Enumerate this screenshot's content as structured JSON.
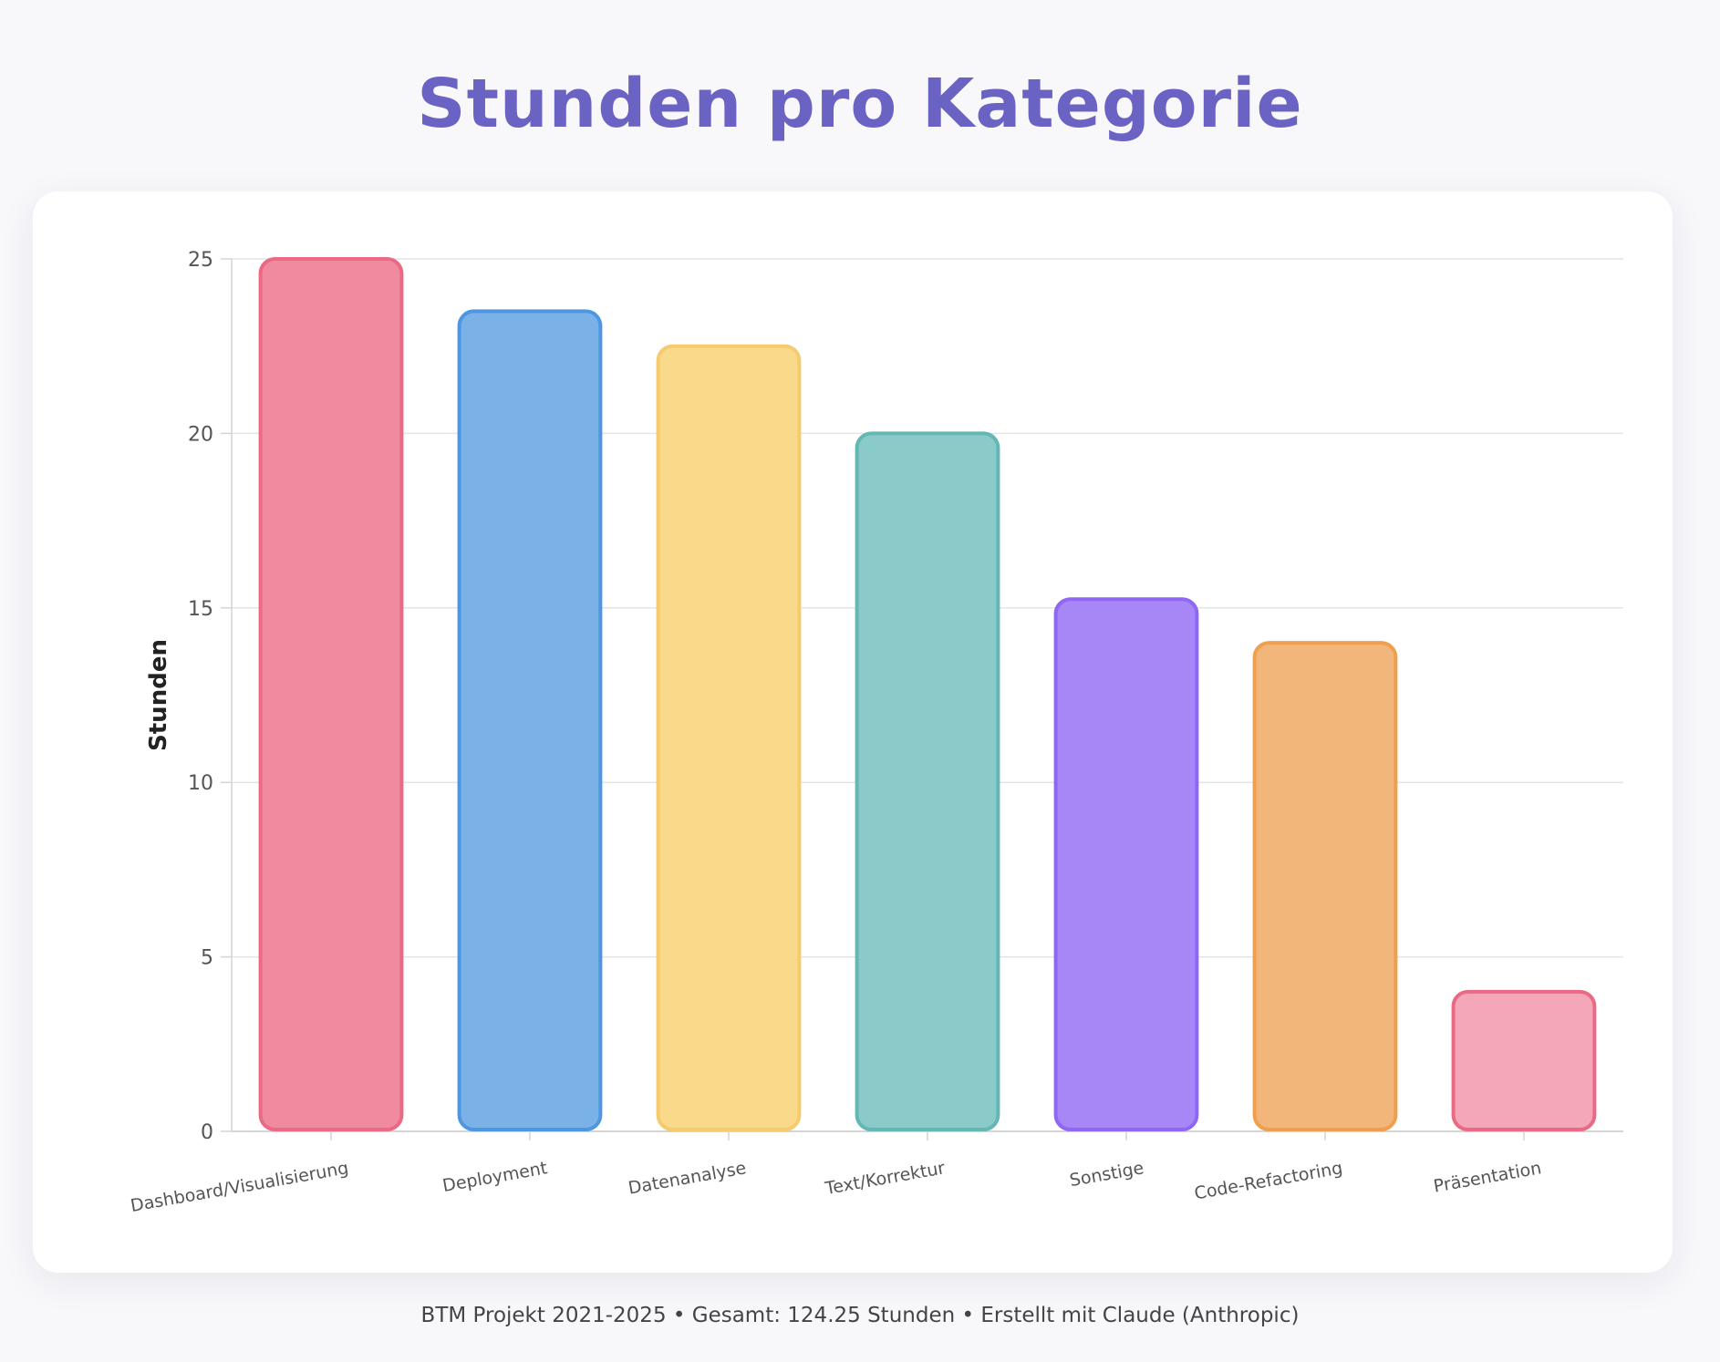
{
  "page": {
    "title": "Stunden pro Kategorie",
    "footer": "BTM Projekt 2021-2025 • Gesamt: 124.25 Stunden • Erstellt mit Claude (Anthropic)"
  },
  "chart_data": {
    "type": "bar",
    "title": "Stunden pro Kategorie",
    "xlabel": "",
    "ylabel": "Stunden",
    "ylim": [
      0,
      25
    ],
    "yticks": [
      0,
      5,
      10,
      15,
      20,
      25
    ],
    "grid": true,
    "legend": "none",
    "categories": [
      "Dashboard/Visualisierung",
      "Deployment",
      "Datenanalyse",
      "Text/Korrektur",
      "Sonstige",
      "Code-Refactoring",
      "Präsentation"
    ],
    "values": [
      25,
      23.5,
      22.5,
      20,
      15.25,
      14,
      4
    ],
    "colors": {
      "fill": [
        "#f08a9e",
        "#7ab2e8",
        "#f9d98a",
        "#8acbca",
        "#a787f6",
        "#f2b67a",
        "#f4a7b8"
      ],
      "stroke": [
        "#ea6a85",
        "#4e96e2",
        "#f5cb6e",
        "#63b7b4",
        "#9066f5",
        "#ee9f4f",
        "#ea6a85"
      ]
    }
  }
}
